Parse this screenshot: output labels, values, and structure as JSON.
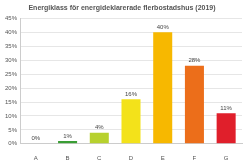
{
  "chart_data": {
    "type": "bar",
    "title": "Energiklass för energideklarerade flerbostadshus (2019)",
    "categories": [
      "A",
      "B",
      "C",
      "D",
      "E",
      "F",
      "G"
    ],
    "values": [
      0,
      1,
      4,
      16,
      40,
      28,
      11
    ],
    "value_labels": [
      "0%",
      "1%",
      "4%",
      "16%",
      "40%",
      "28%",
      "11%"
    ],
    "colors": [
      "#2e9e3a",
      "#3a9e35",
      "#b7d12e",
      "#f3e21a",
      "#f7b800",
      "#ec6e1a",
      "#e01f2b"
    ],
    "ylim": [
      0,
      45
    ],
    "yticks": [
      {
        "value": 0,
        "label": "0%"
      },
      {
        "value": 5,
        "label": "5%"
      },
      {
        "value": 10,
        "label": "10%"
      },
      {
        "value": 15,
        "label": "15%"
      },
      {
        "value": 20,
        "label": "20%"
      },
      {
        "value": 25,
        "label": "25%"
      },
      {
        "value": 30,
        "label": "30%"
      },
      {
        "value": 35,
        "label": "35%"
      },
      {
        "value": 40,
        "label": "40%"
      },
      {
        "value": 45,
        "label": "45%"
      }
    ],
    "grid": true,
    "data_labels": true
  }
}
